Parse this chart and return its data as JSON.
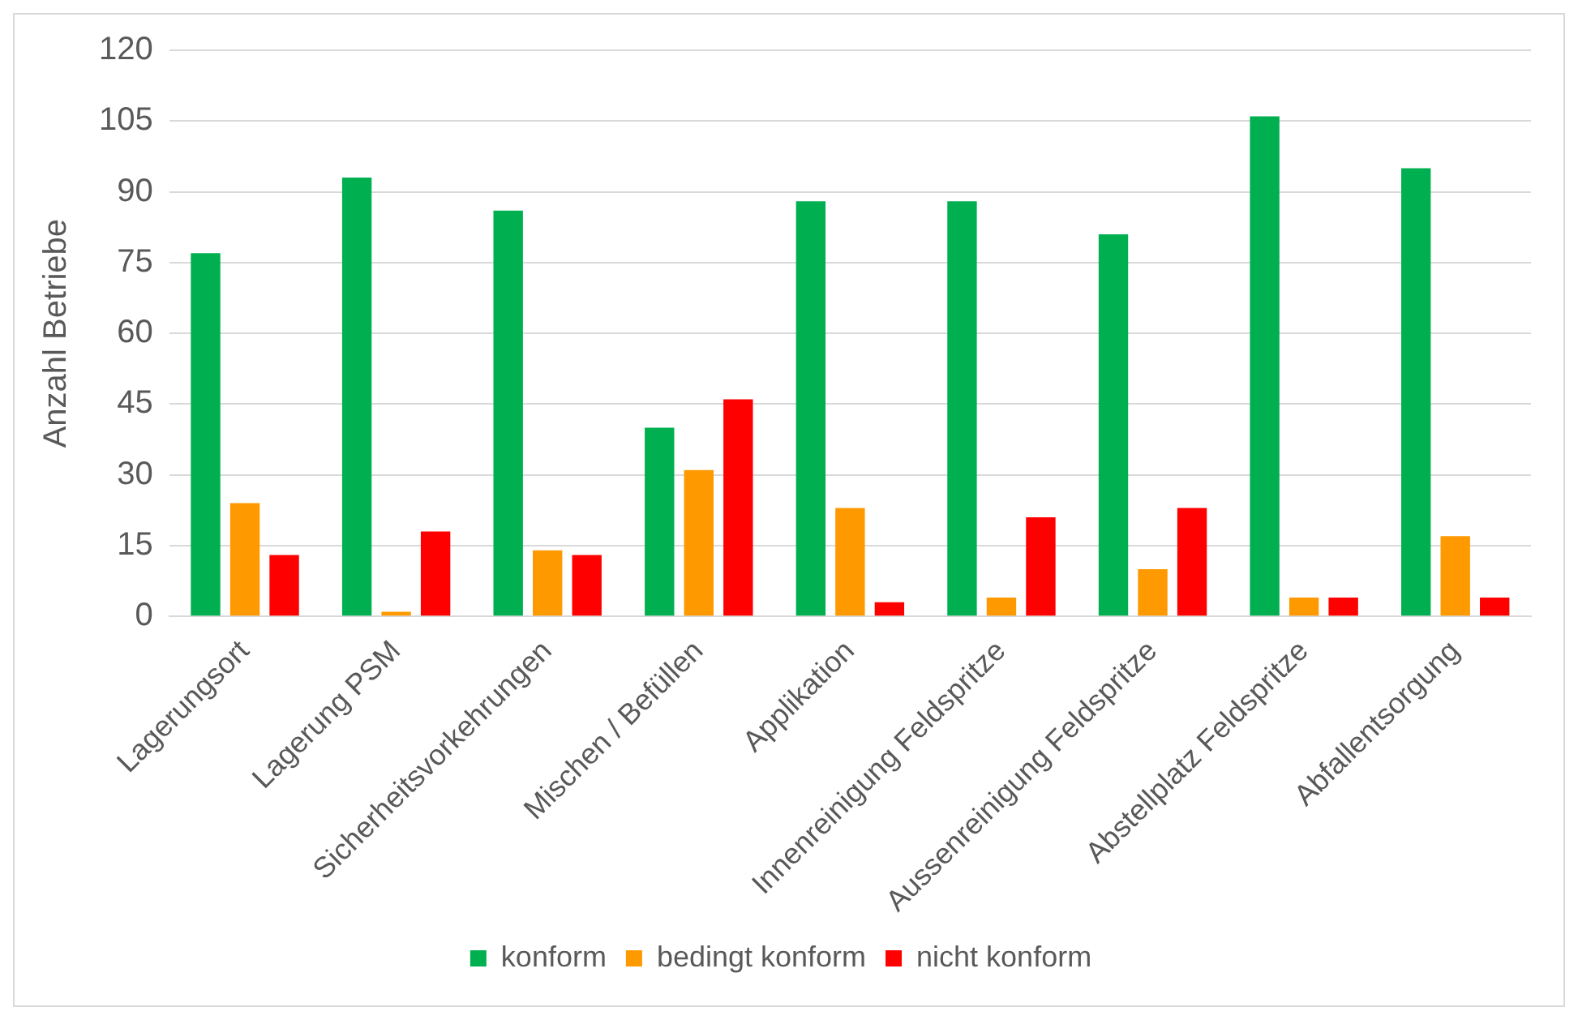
{
  "chart_data": {
    "type": "bar",
    "ylabel": "Anzahl Betriebe",
    "categories": [
      "Lagerungsort",
      "Lagerung PSM",
      "Sicherheitsvorkehrungen",
      "Mischen / Befüllen",
      "Applikation",
      "Innenreinigung Feldspritze",
      "Aussenreinigung Feldspritze",
      "Abstellplatz Feldspritze",
      "Abfallentsorgung"
    ],
    "series": [
      {
        "name": "konform",
        "color": "#00b050",
        "values": [
          77,
          93,
          86,
          40,
          88,
          88,
          81,
          106,
          95
        ]
      },
      {
        "name": "bedingt konform",
        "color": "#ff9900",
        "values": [
          24,
          1,
          14,
          31,
          23,
          4,
          10,
          4,
          17
        ]
      },
      {
        "name": "nicht konform",
        "color": "#ff0000",
        "values": [
          13,
          18,
          13,
          46,
          3,
          21,
          23,
          4,
          4
        ]
      }
    ],
    "ylim": [
      0,
      120
    ],
    "yticks": [
      0,
      15,
      30,
      45,
      60,
      75,
      90,
      105,
      120
    ],
    "grid": "y",
    "legend": "bottom"
  }
}
